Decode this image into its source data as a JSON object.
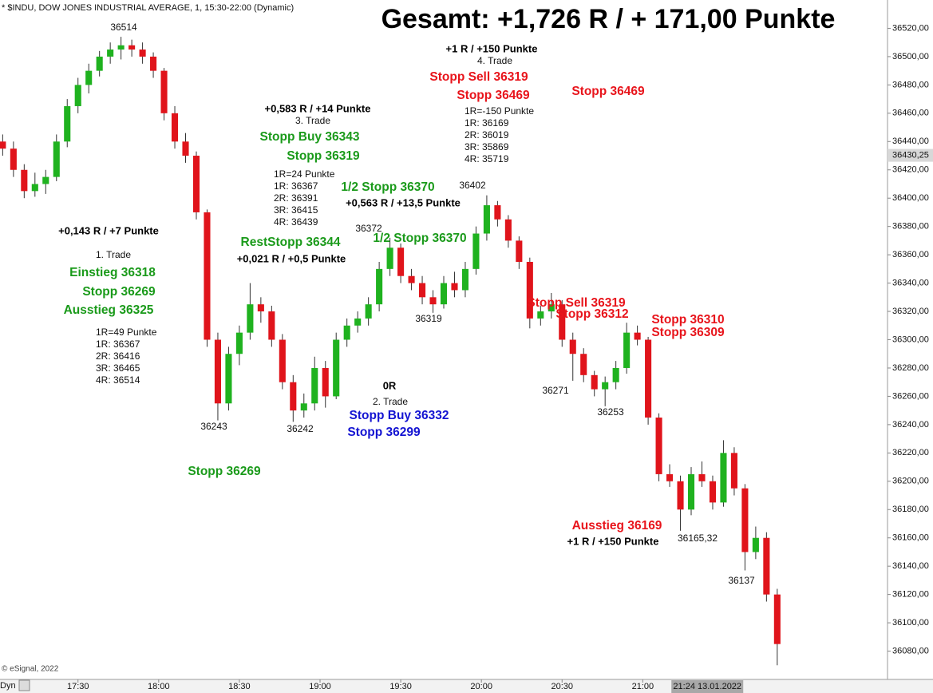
{
  "chart_data": {
    "type": "candlestick",
    "title": "Gesamt: +1,726 R / + 171,00 Punkte",
    "subtitle": "* $INDU, DOW JONES INDUSTRIAL AVERAGE, 1, 15:30-22:00 (Dynamic)",
    "footer": "© eSignal, 2022",
    "mode_label": "Dyn",
    "up_color": "#1fb21f",
    "down_color": "#e0141b",
    "xlim": [
      1021,
      1351
    ],
    "ylim": [
      36060,
      36540
    ],
    "xticks": [
      {
        "value": 1050,
        "label": "17:30"
      },
      {
        "value": 1080,
        "label": "18:00"
      },
      {
        "value": 1110,
        "label": "18:30"
      },
      {
        "value": 1140,
        "label": "19:00"
      },
      {
        "value": 1170,
        "label": "19:30"
      },
      {
        "value": 1200,
        "label": "20:00"
      },
      {
        "value": 1230,
        "label": "20:30"
      },
      {
        "value": 1260,
        "label": "21:00"
      }
    ],
    "yticks": [
      {
        "value": 36080,
        "label": "36080,00"
      },
      {
        "value": 36100,
        "label": "36100,00"
      },
      {
        "value": 36120,
        "label": "36120,00"
      },
      {
        "value": 36140,
        "label": "36140,00"
      },
      {
        "value": 36160,
        "label": "36160,00"
      },
      {
        "value": 36180,
        "label": "36180,00"
      },
      {
        "value": 36200,
        "label": "36200,00"
      },
      {
        "value": 36220,
        "label": "36220,00"
      },
      {
        "value": 36240,
        "label": "36240,00"
      },
      {
        "value": 36260,
        "label": "36260,00"
      },
      {
        "value": 36280,
        "label": "36280,00"
      },
      {
        "value": 36300,
        "label": "36300,00"
      },
      {
        "value": 36320,
        "label": "36320,00"
      },
      {
        "value": 36340,
        "label": "36340,00"
      },
      {
        "value": 36360,
        "label": "36360,00"
      },
      {
        "value": 36380,
        "label": "36380,00"
      },
      {
        "value": 36400,
        "label": "36400,00"
      },
      {
        "value": 36420,
        "label": "36420,00"
      },
      {
        "value": 36440,
        "label": "36440,00"
      },
      {
        "value": 36460,
        "label": "36460,00"
      },
      {
        "value": 36480,
        "label": "36480,00"
      },
      {
        "value": 36500,
        "label": "36500,00"
      },
      {
        "value": 36520,
        "label": "36520,00"
      }
    ],
    "current_price": {
      "value": 36430.25,
      "label": "36430,25"
    },
    "crosshair_time": {
      "value": 1284,
      "label": "21:24 13.01.2022"
    },
    "x": [
      1022,
      1026,
      1030,
      1034,
      1038,
      1042,
      1046,
      1050,
      1054,
      1058,
      1062,
      1066,
      1070,
      1074,
      1078,
      1082,
      1086,
      1090,
      1094,
      1098,
      1102,
      1106,
      1110,
      1114,
      1118,
      1122,
      1126,
      1130,
      1134,
      1138,
      1142,
      1146,
      1150,
      1154,
      1158,
      1162,
      1166,
      1170,
      1174,
      1178,
      1182,
      1186,
      1190,
      1194,
      1198,
      1202,
      1206,
      1210,
      1214,
      1218,
      1222,
      1226,
      1230,
      1234,
      1238,
      1242,
      1246,
      1250,
      1254,
      1258,
      1262,
      1266,
      1270,
      1274,
      1278,
      1282,
      1286,
      1290,
      1294,
      1298,
      1302,
      1306,
      1310
    ],
    "ohlc": [
      [
        36440,
        36445,
        36430,
        36435
      ],
      [
        36435,
        36440,
        36415,
        36420
      ],
      [
        36420,
        36424,
        36400,
        36405
      ],
      [
        36405,
        36418,
        36401,
        36410
      ],
      [
        36410,
        36420,
        36403,
        36415
      ],
      [
        36415,
        36445,
        36412,
        36440
      ],
      [
        36440,
        36470,
        36436,
        36465
      ],
      [
        36465,
        36485,
        36460,
        36480
      ],
      [
        36480,
        36495,
        36474,
        36490
      ],
      [
        36490,
        36504,
        36486,
        36500
      ],
      [
        36500,
        36510,
        36495,
        36505
      ],
      [
        36505,
        36514,
        36498,
        36508
      ],
      [
        36508,
        36512,
        36500,
        36505
      ],
      [
        36505,
        36510,
        36495,
        36500
      ],
      [
        36500,
        36503,
        36485,
        36490
      ],
      [
        36490,
        36492,
        36455,
        36460
      ],
      [
        36460,
        36465,
        36435,
        36440
      ],
      [
        36440,
        36446,
        36425,
        36430
      ],
      [
        36430,
        36433,
        36385,
        36390
      ],
      [
        36390,
        36392,
        36295,
        36300
      ],
      [
        36300,
        36305,
        36243,
        36255
      ],
      [
        36255,
        36295,
        36250,
        36290
      ],
      [
        36290,
        36310,
        36282,
        36305
      ],
      [
        36305,
        36340,
        36300,
        36325
      ],
      [
        36325,
        36330,
        36312,
        36320
      ],
      [
        36320,
        36324,
        36295,
        36300
      ],
      [
        36300,
        36304,
        36265,
        36270
      ],
      [
        36270,
        36275,
        36242,
        36250
      ],
      [
        36250,
        36262,
        36245,
        36255
      ],
      [
        36255,
        36288,
        36250,
        36280
      ],
      [
        36280,
        36285,
        36252,
        36260
      ],
      [
        36260,
        36305,
        36258,
        36300
      ],
      [
        36300,
        36315,
        36295,
        36310
      ],
      [
        36310,
        36320,
        36305,
        36315
      ],
      [
        36315,
        36330,
        36310,
        36325
      ],
      [
        36325,
        36355,
        36320,
        36350
      ],
      [
        36350,
        36372,
        36345,
        36365
      ],
      [
        36365,
        36368,
        36340,
        36345
      ],
      [
        36345,
        36350,
        36335,
        36340
      ],
      [
        36340,
        36345,
        36325,
        36330
      ],
      [
        36330,
        36335,
        36319,
        36325
      ],
      [
        36325,
        36345,
        36322,
        36340
      ],
      [
        36340,
        36348,
        36330,
        36335
      ],
      [
        36335,
        36355,
        36330,
        36350
      ],
      [
        36350,
        36380,
        36346,
        36375
      ],
      [
        36375,
        36402,
        36370,
        36395
      ],
      [
        36395,
        36398,
        36380,
        36385
      ],
      [
        36385,
        36388,
        36365,
        36370
      ],
      [
        36370,
        36373,
        36350,
        36355
      ],
      [
        36355,
        36358,
        36308,
        36315
      ],
      [
        36315,
        36324,
        36310,
        36320
      ],
      [
        36320,
        36333,
        36315,
        36325
      ],
      [
        36325,
        36328,
        36295,
        36300
      ],
      [
        36300,
        36305,
        36271,
        36290
      ],
      [
        36290,
        36294,
        36270,
        36275
      ],
      [
        36275,
        36278,
        36260,
        36265
      ],
      [
        36265,
        36274,
        36253,
        36270
      ],
      [
        36270,
        36285,
        36265,
        36280
      ],
      [
        36280,
        36312,
        36276,
        36305
      ],
      [
        36305,
        36310,
        36296,
        36300
      ],
      [
        36300,
        36302,
        36240,
        36245
      ],
      [
        36245,
        36248,
        36200,
        36205
      ],
      [
        36205,
        36212,
        36196,
        36200
      ],
      [
        36200,
        36204,
        36165,
        36180
      ],
      [
        36180,
        36210,
        36176,
        36205
      ],
      [
        36205,
        36214,
        36196,
        36200
      ],
      [
        36200,
        36204,
        36180,
        36185
      ],
      [
        36185,
        36229,
        36182,
        36220
      ],
      [
        36220,
        36224,
        36190,
        36195
      ],
      [
        36195,
        36198,
        36137,
        36150
      ],
      [
        36150,
        36168,
        36145,
        36160
      ],
      [
        36160,
        36164,
        36115,
        36120
      ],
      [
        36120,
        36124,
        36070,
        36085
      ]
    ],
    "annotations": [
      {
        "text": "36514",
        "color": "#111111"
      },
      {
        "text": "36243",
        "color": "#111111"
      },
      {
        "text": "36242",
        "color": "#111111"
      },
      {
        "text": "36372",
        "color": "#111111"
      },
      {
        "text": "36319",
        "color": "#111111"
      },
      {
        "text": "36402",
        "color": "#111111"
      },
      {
        "text": "36271",
        "color": "#111111"
      },
      {
        "text": "36253",
        "color": "#111111"
      },
      {
        "text": "36165,32",
        "color": "#111111"
      },
      {
        "text": "36137",
        "color": "#111111"
      },
      {
        "text": "+0,143 R / +7 Punkte",
        "color": "#000000"
      },
      {
        "text": "1. Trade",
        "color": "#111111"
      },
      {
        "text": "Einstieg 36318",
        "color": "#1a9a1a"
      },
      {
        "text": "Stopp 36269",
        "color": "#1a9a1a"
      },
      {
        "text": "Ausstieg 36325",
        "color": "#1a9a1a"
      },
      {
        "text": "1R=49 Punkte",
        "color": "#111111"
      },
      {
        "text": "1R: 36367",
        "color": "#111111"
      },
      {
        "text": "2R: 36416",
        "color": "#111111"
      },
      {
        "text": "3R: 36465",
        "color": "#111111"
      },
      {
        "text": "4R: 36514",
        "color": "#111111"
      },
      {
        "text": "Stopp 36269",
        "color": "#1a9a1a"
      },
      {
        "text": "0R",
        "color": "#000000"
      },
      {
        "text": "2. Trade",
        "color": "#111111"
      },
      {
        "text": "Stopp Buy 36332",
        "color": "#1414d2"
      },
      {
        "text": "Stopp 36299",
        "color": "#1414d2"
      },
      {
        "text": "+0,583 R / +14 Punkte",
        "color": "#000000"
      },
      {
        "text": "3. Trade",
        "color": "#111111"
      },
      {
        "text": "Stopp Buy 36343",
        "color": "#1a9a1a"
      },
      {
        "text": "Stopp 36319",
        "color": "#1a9a1a"
      },
      {
        "text": "1R=24 Punkte",
        "color": "#111111"
      },
      {
        "text": "1R: 36367",
        "color": "#111111"
      },
      {
        "text": "2R: 36391",
        "color": "#111111"
      },
      {
        "text": "3R: 36415",
        "color": "#111111"
      },
      {
        "text": "4R: 36439",
        "color": "#111111"
      },
      {
        "text": "RestStopp 36344",
        "color": "#1a9a1a"
      },
      {
        "text": "+0,021 R / +0,5 Punkte",
        "color": "#000000"
      },
      {
        "text": "1/2 Stopp 36370",
        "color": "#1a9a1a"
      },
      {
        "text": "+0,563 R / +13,5 Punkte",
        "color": "#000000"
      },
      {
        "text": "1/2 Stopp 36370",
        "color": "#1a9a1a"
      },
      {
        "text": "+1 R / +150 Punkte",
        "color": "#000000"
      },
      {
        "text": "4. Trade",
        "color": "#111111"
      },
      {
        "text": "Stopp Sell 36319",
        "color": "#e8141b"
      },
      {
        "text": "Stopp 36469",
        "color": "#e8141b"
      },
      {
        "text": "1R=-150 Punkte",
        "color": "#111111"
      },
      {
        "text": "1R: 36169",
        "color": "#111111"
      },
      {
        "text": "2R: 36019",
        "color": "#111111"
      },
      {
        "text": "3R: 35869",
        "color": "#111111"
      },
      {
        "text": "4R: 35719",
        "color": "#111111"
      },
      {
        "text": "Stopp 36469",
        "color": "#e8141b"
      },
      {
        "text": "Stopp Sell 36319",
        "color": "#e8141b"
      },
      {
        "text": "Stopp 36312",
        "color": "#e8141b"
      },
      {
        "text": "Stopp 36310",
        "color": "#e8141b"
      },
      {
        "text": "Stopp 36309",
        "color": "#e8141b"
      },
      {
        "text": "Ausstieg 36169",
        "color": "#e8141b"
      },
      {
        "text": "+1 R / +150 Punkte",
        "color": "#000000"
      }
    ]
  }
}
